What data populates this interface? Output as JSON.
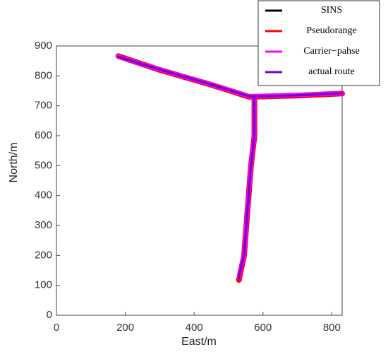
{
  "chart_data": {
    "type": "line",
    "x_label": "East/m",
    "y_label": "North/m",
    "x": [
      180,
      300,
      450,
      560,
      700,
      830,
      null,
      575,
      575,
      565,
      555,
      545,
      530
    ],
    "series": [
      {
        "name": "SINS",
        "color": "#000000",
        "values": [
          865,
          822,
          772,
          732,
          735,
          742,
          null,
          730,
          600,
          500,
          350,
          200,
          122
        ]
      },
      {
        "name": "Pseudorange",
        "color": "#ff0000",
        "values": [
          866,
          820,
          770,
          730,
          734,
          741,
          null,
          728,
          598,
          498,
          348,
          198,
          118
        ]
      },
      {
        "name": "Carrier−pahse",
        "color": "#ff00ff",
        "values": [
          864,
          821,
          771,
          731,
          736,
          742,
          null,
          731,
          601,
          501,
          351,
          201,
          125
        ]
      },
      {
        "name": "actual route",
        "color": "#6a00d0",
        "values": [
          863,
          821,
          771,
          731,
          735,
          742,
          null,
          730,
          600,
          500,
          350,
          200,
          130
        ]
      }
    ],
    "xlim": [
      0,
      830
    ],
    "ylim": [
      0,
      900
    ],
    "xticks": [
      0,
      200,
      400,
      600,
      800
    ],
    "yticks": [
      0,
      100,
      200,
      300,
      400,
      500,
      600,
      700,
      800,
      900
    ]
  }
}
